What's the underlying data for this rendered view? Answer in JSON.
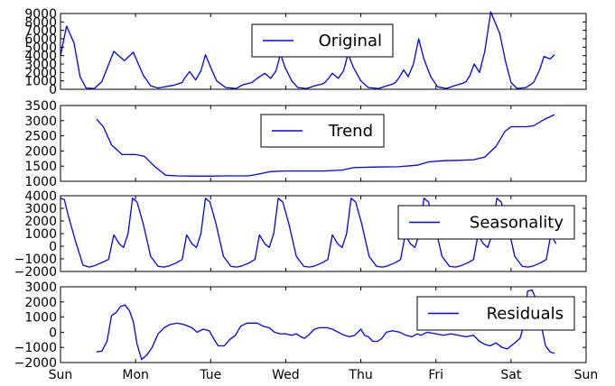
{
  "chart_data": {
    "type": "line",
    "x_tick_labels": [
      "Sun",
      "Mon",
      "Tue",
      "Wed",
      "Thu",
      "Fri",
      "Sat",
      "Sun"
    ],
    "x_tick_values": [
      0,
      1,
      2,
      3,
      4,
      5,
      6,
      7
    ],
    "line_color": "#0000ff",
    "panels": [
      {
        "name": "Original",
        "legend_label": "Original",
        "legend_position": "upper-center",
        "ylim": [
          0,
          9000
        ],
        "y_ticks": [
          0,
          1000,
          2000,
          3000,
          4000,
          5000,
          6000,
          7000,
          8000,
          9000
        ],
        "y_tick_labels": [
          "0",
          "1000",
          "2000",
          "3000",
          "4000",
          "5000",
          "6000",
          "7000",
          "8000",
          "9000"
        ],
        "points": [
          [
            0,
            4000
          ],
          [
            0.08,
            7500
          ],
          [
            0.18,
            5500
          ],
          [
            0.26,
            1500
          ],
          [
            0.34,
            150
          ],
          [
            0.45,
            100
          ],
          [
            0.55,
            900
          ],
          [
            0.71,
            4500
          ],
          [
            0.85,
            3400
          ],
          [
            0.97,
            4400
          ],
          [
            1.1,
            1700
          ],
          [
            1.2,
            400
          ],
          [
            1.3,
            150
          ],
          [
            1.52,
            500
          ],
          [
            1.62,
            800
          ],
          [
            1.65,
            1300
          ],
          [
            1.72,
            2100
          ],
          [
            1.8,
            1100
          ],
          [
            1.87,
            2200
          ],
          [
            1.93,
            4100
          ],
          [
            2.0,
            2600
          ],
          [
            2.08,
            1000
          ],
          [
            2.2,
            200
          ],
          [
            2.34,
            100
          ],
          [
            2.42,
            500
          ],
          [
            2.5,
            700
          ],
          [
            2.55,
            800
          ],
          [
            2.62,
            1300
          ],
          [
            2.72,
            1900
          ],
          [
            2.8,
            1300
          ],
          [
            2.87,
            2200
          ],
          [
            2.93,
            4200
          ],
          [
            2.99,
            2600
          ],
          [
            3.08,
            1000
          ],
          [
            3.16,
            200
          ],
          [
            3.28,
            100
          ],
          [
            3.4,
            450
          ],
          [
            3.48,
            600
          ],
          [
            3.52,
            800
          ],
          [
            3.57,
            1300
          ],
          [
            3.62,
            1900
          ],
          [
            3.7,
            1300
          ],
          [
            3.77,
            2200
          ],
          [
            3.83,
            4200
          ],
          [
            3.9,
            2600
          ],
          [
            4.0,
            1000
          ],
          [
            4.1,
            200
          ],
          [
            4.24,
            100
          ],
          [
            4.34,
            400
          ],
          [
            4.42,
            600
          ],
          [
            4.46,
            800
          ],
          [
            4.51,
            1400
          ],
          [
            4.57,
            2300
          ],
          [
            4.63,
            1500
          ],
          [
            4.7,
            3000
          ],
          [
            4.77,
            6000
          ],
          [
            4.84,
            3600
          ],
          [
            4.93,
            1500
          ],
          [
            5.02,
            300
          ],
          [
            5.14,
            100
          ],
          [
            5.24,
            400
          ],
          [
            5.35,
            700
          ],
          [
            5.4,
            900
          ],
          [
            5.45,
            1600
          ],
          [
            5.51,
            3000
          ],
          [
            5.58,
            2000
          ],
          [
            5.65,
            4500
          ],
          [
            5.73,
            9200
          ],
          [
            5.85,
            6600
          ],
          [
            5.93,
            3200
          ],
          [
            6.0,
            800
          ],
          [
            6.08,
            100
          ],
          [
            6.2,
            200
          ],
          [
            6.3,
            800
          ],
          [
            6.38,
            2300
          ],
          [
            6.44,
            3900
          ],
          [
            6.52,
            3600
          ],
          [
            6.58,
            4100
          ]
        ]
      },
      {
        "name": "Trend",
        "legend_label": "Trend",
        "legend_position": "upper-center",
        "ylim": [
          1000,
          3500
        ],
        "y_ticks": [
          1000,
          1500,
          2000,
          2500,
          3000,
          3500
        ],
        "y_tick_labels": [
          "1000",
          "1500",
          "2000",
          "2500",
          "3000",
          "3500"
        ],
        "points": [
          [
            0.48,
            3050
          ],
          [
            0.57,
            2800
          ],
          [
            0.68,
            2200
          ],
          [
            0.82,
            1880
          ],
          [
            1.0,
            1880
          ],
          [
            1.12,
            1820
          ],
          [
            1.25,
            1500
          ],
          [
            1.4,
            1200
          ],
          [
            1.55,
            1180
          ],
          [
            1.8,
            1170
          ],
          [
            2.0,
            1170
          ],
          [
            2.2,
            1180
          ],
          [
            2.5,
            1180
          ],
          [
            2.6,
            1220
          ],
          [
            2.8,
            1320
          ],
          [
            3.0,
            1340
          ],
          [
            3.2,
            1340
          ],
          [
            3.5,
            1340
          ],
          [
            3.75,
            1370
          ],
          [
            3.9,
            1450
          ],
          [
            4.2,
            1470
          ],
          [
            4.5,
            1480
          ],
          [
            4.75,
            1530
          ],
          [
            4.9,
            1640
          ],
          [
            5.1,
            1680
          ],
          [
            5.3,
            1690
          ],
          [
            5.5,
            1710
          ],
          [
            5.65,
            1800
          ],
          [
            5.8,
            2150
          ],
          [
            5.92,
            2650
          ],
          [
            6.0,
            2800
          ],
          [
            6.2,
            2800
          ],
          [
            6.3,
            2830
          ],
          [
            6.45,
            3050
          ],
          [
            6.58,
            3200
          ]
        ]
      },
      {
        "name": "Seasonality",
        "legend_label": "Seasonality",
        "legend_position": "right",
        "ylim": [
          -2000,
          4000
        ],
        "y_ticks": [
          -2000,
          -1000,
          0,
          1000,
          2000,
          3000,
          4000
        ],
        "y_tick_labels": [
          "−2000",
          "−1000",
          "0",
          "1000",
          "2000",
          "3000",
          "4000"
        ],
        "points": [
          [
            0,
            3800
          ],
          [
            0.05,
            3700
          ],
          [
            0.1,
            2500
          ],
          [
            0.2,
            400
          ],
          [
            0.3,
            -1500
          ],
          [
            0.38,
            -1650
          ],
          [
            0.45,
            -1550
          ],
          [
            0.55,
            -1300
          ],
          [
            0.64,
            -1050
          ],
          [
            0.71,
            900
          ],
          [
            0.78,
            200
          ],
          [
            0.84,
            -100
          ],
          [
            0.9,
            1000
          ],
          [
            0.96,
            3800
          ],
          [
            1.02,
            3500
          ],
          [
            1.1,
            1800
          ],
          [
            1.2,
            -800
          ],
          [
            1.3,
            -1600
          ],
          [
            1.38,
            -1650
          ],
          [
            1.45,
            -1550
          ],
          [
            1.55,
            -1300
          ],
          [
            1.62,
            -1050
          ],
          [
            1.68,
            900
          ],
          [
            1.75,
            200
          ],
          [
            1.81,
            -100
          ],
          [
            1.87,
            1000
          ],
          [
            1.93,
            3800
          ],
          [
            1.99,
            3500
          ],
          [
            2.07,
            1800
          ],
          [
            2.17,
            -800
          ],
          [
            2.27,
            -1600
          ],
          [
            2.35,
            -1650
          ],
          [
            2.42,
            -1550
          ],
          [
            2.52,
            -1300
          ],
          [
            2.59,
            -1050
          ],
          [
            2.65,
            900
          ],
          [
            2.72,
            200
          ],
          [
            2.78,
            -100
          ],
          [
            2.84,
            1000
          ],
          [
            2.9,
            3800
          ],
          [
            2.96,
            3500
          ],
          [
            3.04,
            1800
          ],
          [
            3.14,
            -800
          ],
          [
            3.24,
            -1600
          ],
          [
            3.32,
            -1650
          ],
          [
            3.39,
            -1550
          ],
          [
            3.49,
            -1300
          ],
          [
            3.56,
            -1050
          ],
          [
            3.62,
            900
          ],
          [
            3.69,
            200
          ],
          [
            3.75,
            -100
          ],
          [
            3.81,
            1000
          ],
          [
            3.87,
            3800
          ],
          [
            3.93,
            3500
          ],
          [
            4.01,
            1800
          ],
          [
            4.11,
            -800
          ],
          [
            4.21,
            -1600
          ],
          [
            4.29,
            -1650
          ],
          [
            4.36,
            -1550
          ],
          [
            4.46,
            -1300
          ],
          [
            4.53,
            -1050
          ],
          [
            4.59,
            900
          ],
          [
            4.66,
            200
          ],
          [
            4.72,
            -100
          ],
          [
            4.78,
            1000
          ],
          [
            4.84,
            3800
          ],
          [
            4.9,
            3500
          ],
          [
            4.98,
            1800
          ],
          [
            5.08,
            -800
          ],
          [
            5.18,
            -1600
          ],
          [
            5.26,
            -1650
          ],
          [
            5.33,
            -1550
          ],
          [
            5.43,
            -1300
          ],
          [
            5.5,
            -1050
          ],
          [
            5.56,
            900
          ],
          [
            5.63,
            200
          ],
          [
            5.69,
            -100
          ],
          [
            5.75,
            1000
          ],
          [
            5.81,
            3800
          ],
          [
            5.87,
            3500
          ],
          [
            5.95,
            1800
          ],
          [
            6.05,
            -800
          ],
          [
            6.15,
            -1600
          ],
          [
            6.23,
            -1650
          ],
          [
            6.3,
            -1550
          ],
          [
            6.4,
            -1300
          ],
          [
            6.47,
            -1050
          ],
          [
            6.53,
            900
          ],
          [
            6.6,
            200
          ]
        ]
      },
      {
        "name": "Residuals",
        "legend_label": "Residuals",
        "legend_position": "right",
        "ylim": [
          -2000,
          3000
        ],
        "y_ticks": [
          -2000,
          -1000,
          0,
          1000,
          2000,
          3000
        ],
        "y_tick_labels": [
          "−2000",
          "−1000",
          "0",
          "1000",
          "2000",
          "3000"
        ],
        "points": [
          [
            0.48,
            -1300
          ],
          [
            0.55,
            -1250
          ],
          [
            0.62,
            -600
          ],
          [
            0.68,
            1100
          ],
          [
            0.74,
            1300
          ],
          [
            0.8,
            1700
          ],
          [
            0.86,
            1800
          ],
          [
            0.92,
            1400
          ],
          [
            0.97,
            700
          ],
          [
            1.02,
            -800
          ],
          [
            1.08,
            -1800
          ],
          [
            1.15,
            -1500
          ],
          [
            1.22,
            -1000
          ],
          [
            1.3,
            -100
          ],
          [
            1.38,
            300
          ],
          [
            1.45,
            500
          ],
          [
            1.55,
            600
          ],
          [
            1.65,
            500
          ],
          [
            1.75,
            300
          ],
          [
            1.82,
            0
          ],
          [
            1.9,
            200
          ],
          [
            1.98,
            100
          ],
          [
            2.05,
            -500
          ],
          [
            2.1,
            -900
          ],
          [
            2.18,
            -900
          ],
          [
            2.25,
            -500
          ],
          [
            2.33,
            -200
          ],
          [
            2.4,
            400
          ],
          [
            2.48,
            600
          ],
          [
            2.55,
            600
          ],
          [
            2.62,
            600
          ],
          [
            2.7,
            400
          ],
          [
            2.78,
            300
          ],
          [
            2.85,
            0
          ],
          [
            2.92,
            -100
          ],
          [
            3.0,
            -100
          ],
          [
            3.08,
            -200
          ],
          [
            3.14,
            -100
          ],
          [
            3.2,
            -300
          ],
          [
            3.25,
            -400
          ],
          [
            3.3,
            -200
          ],
          [
            3.38,
            200
          ],
          [
            3.45,
            300
          ],
          [
            3.55,
            300
          ],
          [
            3.62,
            200
          ],
          [
            3.7,
            0
          ],
          [
            3.78,
            -200
          ],
          [
            3.85,
            -300
          ],
          [
            3.92,
            -200
          ],
          [
            4.0,
            200
          ],
          [
            4.05,
            -200
          ],
          [
            4.1,
            -300
          ],
          [
            4.16,
            -600
          ],
          [
            4.22,
            -600
          ],
          [
            4.28,
            -400
          ],
          [
            4.34,
            0
          ],
          [
            4.42,
            100
          ],
          [
            4.52,
            0
          ],
          [
            4.6,
            -200
          ],
          [
            4.68,
            -300
          ],
          [
            4.75,
            -100
          ],
          [
            4.8,
            -200
          ],
          [
            4.88,
            0
          ],
          [
            5.0,
            -100
          ],
          [
            5.1,
            -200
          ],
          [
            5.2,
            -100
          ],
          [
            5.3,
            -200
          ],
          [
            5.4,
            -300
          ],
          [
            5.5,
            -200
          ],
          [
            5.58,
            -600
          ],
          [
            5.65,
            -800
          ],
          [
            5.72,
            -900
          ],
          [
            5.8,
            -700
          ],
          [
            5.88,
            -1000
          ],
          [
            5.95,
            -1100
          ],
          [
            6.0,
            -900
          ],
          [
            6.05,
            -700
          ],
          [
            6.12,
            -400
          ],
          [
            6.18,
            600
          ],
          [
            6.22,
            2700
          ],
          [
            6.28,
            2800
          ],
          [
            6.34,
            2100
          ],
          [
            6.4,
            500
          ],
          [
            6.46,
            -900
          ],
          [
            6.52,
            -1300
          ],
          [
            6.58,
            -1400
          ]
        ]
      }
    ]
  }
}
